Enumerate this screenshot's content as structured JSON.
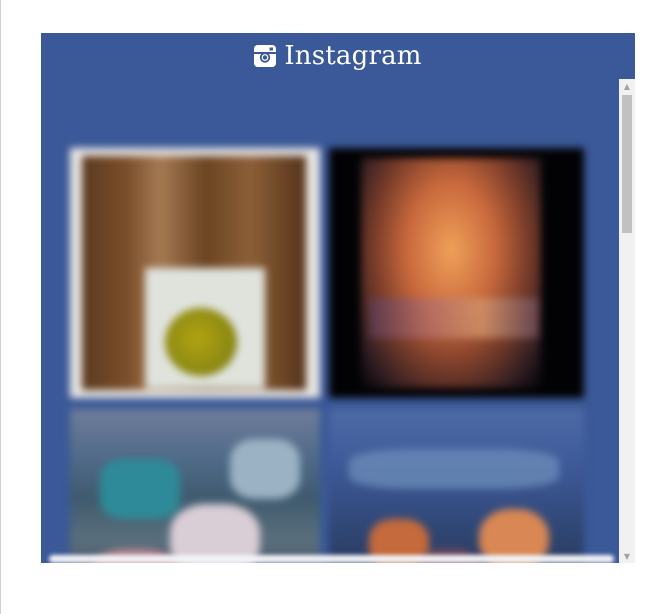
{
  "widget": {
    "title": "Instagram",
    "icon": "instagram-icon",
    "background_color": "#3b5998",
    "photos": [
      {
        "label": "photo-1"
      },
      {
        "label": "photo-2"
      },
      {
        "label": "photo-3"
      },
      {
        "label": "photo-4"
      }
    ]
  },
  "scrollbar": {
    "up_glyph": "▲",
    "down_glyph": "▼"
  }
}
